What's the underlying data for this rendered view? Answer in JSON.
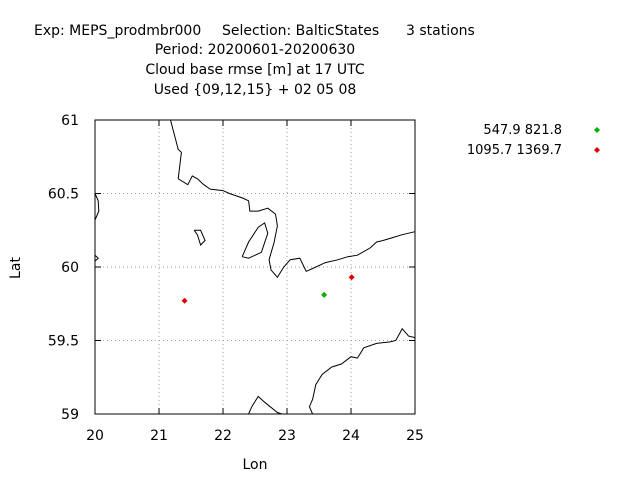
{
  "header": {
    "line1_exp": "Exp: MEPS_prodmbr000",
    "line1_sel": "Selection: BalticStates",
    "line1_stations": "3 stations",
    "line2": "Period: 20200601-20200630",
    "line3": "Cloud base rmse [m] at  17 UTC",
    "line4": "Used {09,12,15} + 02 05 08"
  },
  "chart_data": {
    "type": "scatter",
    "xlabel": "Lon",
    "ylabel": "Lat",
    "xlim": [
      20,
      25
    ],
    "ylim": [
      59,
      61
    ],
    "x_ticks": [
      "20",
      "21",
      "22",
      "23",
      "24",
      "25"
    ],
    "y_ticks": [
      "59",
      "59.5",
      "60",
      "60.5",
      "61"
    ],
    "grid": true,
    "legend_position": "right",
    "series": [
      {
        "name": "547.9 821.8",
        "color": "#00b000",
        "points": [
          {
            "x": 23.58,
            "y": 59.81
          }
        ]
      },
      {
        "name": "1095.7 1369.7",
        "color": "#e00000",
        "points": [
          {
            "x": 21.4,
            "y": 59.77
          },
          {
            "x": 24.01,
            "y": 59.93
          }
        ]
      }
    ],
    "coastlines": [
      [
        [
          21.18,
          61.0
        ],
        [
          21.3,
          60.8
        ],
        [
          21.35,
          60.78
        ],
        [
          21.3,
          60.6
        ],
        [
          21.45,
          60.56
        ],
        [
          21.52,
          60.62
        ],
        [
          21.6,
          60.6
        ],
        [
          21.7,
          60.56
        ],
        [
          21.8,
          60.53
        ],
        [
          22.0,
          60.52
        ],
        [
          22.1,
          60.5
        ],
        [
          22.3,
          60.47
        ],
        [
          22.4,
          60.45
        ],
        [
          22.42,
          60.38
        ],
        [
          22.55,
          60.38
        ],
        [
          22.7,
          60.4
        ],
        [
          22.82,
          60.36
        ],
        [
          22.85,
          60.28
        ],
        [
          22.8,
          60.17
        ],
        [
          22.72,
          60.05
        ],
        [
          22.75,
          59.98
        ],
        [
          22.85,
          59.93
        ],
        [
          22.95,
          60.0
        ],
        [
          23.05,
          60.05
        ],
        [
          23.2,
          60.06
        ],
        [
          23.3,
          59.97
        ],
        [
          23.4,
          59.99
        ],
        [
          23.6,
          60.03
        ],
        [
          23.8,
          60.05
        ],
        [
          23.95,
          60.07
        ],
        [
          24.1,
          60.08
        ],
        [
          24.3,
          60.13
        ],
        [
          24.4,
          60.17
        ],
        [
          24.5,
          60.18
        ],
        [
          24.65,
          60.2
        ],
        [
          24.8,
          60.22
        ],
        [
          25.0,
          60.24
        ]
      ],
      [
        [
          25.0,
          59.52
        ],
        [
          24.9,
          59.53
        ],
        [
          24.8,
          59.58
        ],
        [
          24.7,
          59.5
        ],
        [
          24.6,
          59.49
        ],
        [
          24.4,
          59.48
        ],
        [
          24.2,
          59.45
        ],
        [
          24.1,
          59.38
        ],
        [
          24.0,
          59.39
        ],
        [
          23.85,
          59.34
        ],
        [
          23.7,
          59.32
        ],
        [
          23.55,
          59.27
        ],
        [
          23.45,
          59.2
        ],
        [
          23.4,
          59.1
        ],
        [
          23.35,
          59.05
        ],
        [
          23.4,
          59.0
        ]
      ],
      [
        [
          22.4,
          59.0
        ],
        [
          22.45,
          59.05
        ],
        [
          22.55,
          59.12
        ],
        [
          22.65,
          59.08
        ],
        [
          22.85,
          59.01
        ],
        [
          22.92,
          59.0
        ]
      ],
      [
        [
          20.0,
          60.5
        ],
        [
          20.05,
          60.45
        ],
        [
          20.06,
          60.38
        ],
        [
          20.0,
          60.32
        ]
      ],
      [
        [
          20.0,
          60.08
        ],
        [
          20.05,
          60.06
        ],
        [
          20.0,
          60.04
        ]
      ],
      [
        [
          21.55,
          60.25
        ],
        [
          21.65,
          60.25
        ],
        [
          21.72,
          60.18
        ],
        [
          21.65,
          60.15
        ],
        [
          21.6,
          60.22
        ],
        [
          21.55,
          60.25
        ]
      ],
      [
        [
          22.3,
          60.07
        ],
        [
          22.4,
          60.17
        ],
        [
          22.55,
          60.27
        ],
        [
          22.65,
          60.3
        ],
        [
          22.7,
          60.23
        ],
        [
          22.6,
          60.1
        ],
        [
          22.4,
          60.06
        ],
        [
          22.3,
          60.07
        ]
      ]
    ]
  }
}
